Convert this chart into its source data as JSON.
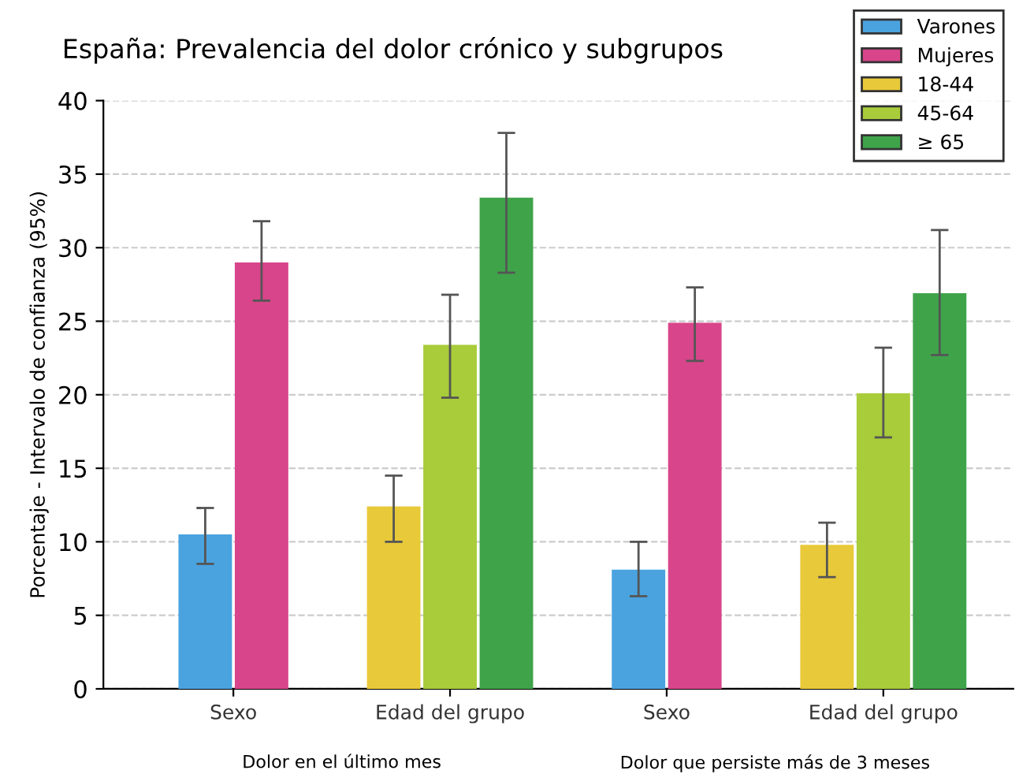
{
  "chart_data": {
    "type": "bar",
    "title": "España: Prevalencia del dolor crónico y subgrupos",
    "ylabel": "Porcentaje - Intervalo de confianza (95%)",
    "categories": [
      "Sexo",
      "Edad del grupo",
      "Sexo",
      "Edad del grupo"
    ],
    "series": [
      {
        "name": "Varones",
        "color": "#4aa3df",
        "values": [
          10.5,
          null,
          8.1,
          null
        ],
        "errors": [
          [
            8.5,
            12.3
          ],
          null,
          [
            6.3,
            10.0
          ],
          null
        ]
      },
      {
        "name": "Mujeres",
        "color": "#d9458a",
        "values": [
          29.0,
          null,
          24.9,
          null
        ],
        "errors": [
          [
            26.4,
            31.8
          ],
          null,
          [
            22.3,
            27.3
          ],
          null
        ]
      },
      {
        "name": "18-44",
        "color": "#e8c93a",
        "values": [
          null,
          12.4,
          null,
          9.8
        ],
        "errors": [
          null,
          [
            10.0,
            14.5
          ],
          null,
          [
            7.6,
            11.3
          ]
        ]
      },
      {
        "name": "45-64",
        "color": "#a8cc3a",
        "values": [
          null,
          23.4,
          null,
          20.1
        ],
        "errors": [
          null,
          [
            19.8,
            26.8
          ],
          null,
          [
            17.1,
            23.2
          ]
        ]
      },
      {
        "name": "≥ 65",
        "color": "#3fa34a",
        "values": [
          null,
          33.4,
          null,
          26.9
        ],
        "errors": [
          null,
          [
            28.3,
            37.8
          ],
          null,
          [
            22.7,
            31.2
          ]
        ]
      }
    ],
    "annotations": [
      "Dolor en el último mes",
      "Dolor que persiste más de 3 meses"
    ],
    "ylim": [
      0,
      40
    ],
    "yticks": [
      0,
      5,
      10,
      15,
      20,
      25,
      30,
      35,
      40
    ],
    "grid": "y",
    "legend": "top right"
  }
}
